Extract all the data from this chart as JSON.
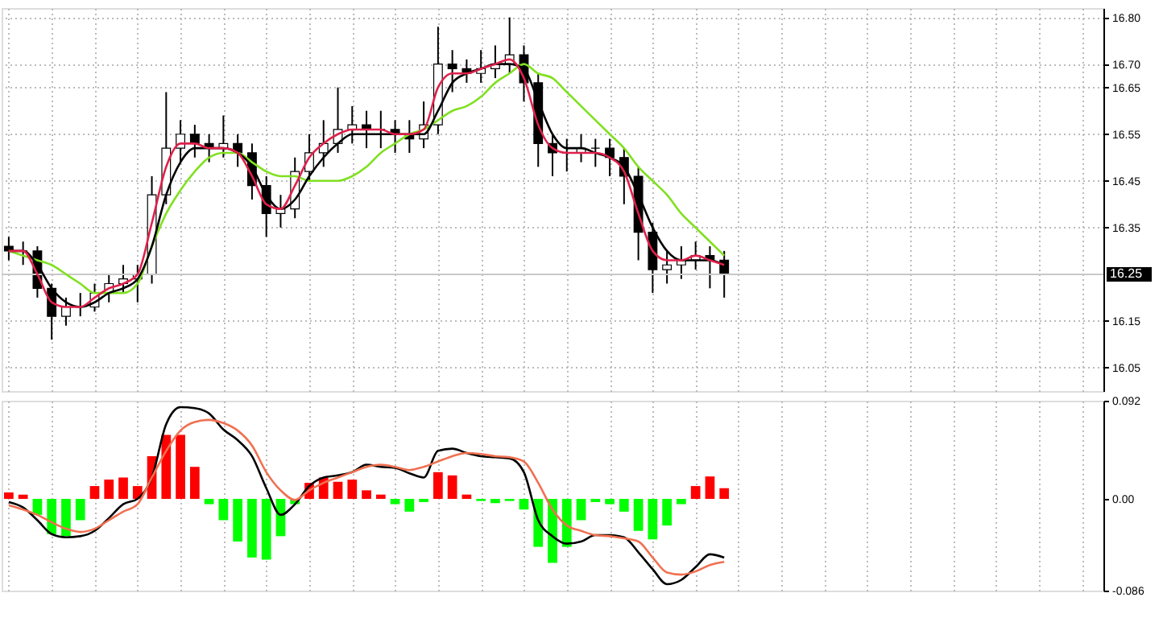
{
  "chart_data": [
    {
      "type": "candlestick",
      "categories": [
        null,
        null,
        null,
        null,
        null,
        null,
        null,
        null,
        null,
        null,
        null,
        null,
        null,
        null,
        null,
        null,
        null,
        null,
        null,
        null,
        null,
        null,
        null,
        null,
        null,
        null,
        null,
        null,
        null,
        null,
        null,
        null,
        null,
        null,
        null,
        null,
        null,
        null,
        null,
        null,
        null,
        null,
        null,
        null,
        null,
        null,
        null,
        null,
        null,
        null,
        null,
        null,
        null,
        null,
        null,
        null,
        null,
        null,
        null,
        null,
        null,
        null,
        null,
        null,
        null,
        null,
        null,
        null,
        null,
        null,
        null,
        null,
        null,
        null,
        null,
        null,
        null
      ],
      "ohlc": [
        [
          16.31,
          16.33,
          16.28,
          16.3
        ],
        [
          16.3,
          16.32,
          16.27,
          16.3
        ],
        [
          16.3,
          16.31,
          16.2,
          16.22
        ],
        [
          16.22,
          16.23,
          16.11,
          16.16
        ],
        [
          16.16,
          16.2,
          16.14,
          16.18
        ],
        [
          16.18,
          16.21,
          16.16,
          16.18
        ],
        [
          16.18,
          16.23,
          16.17,
          16.21
        ],
        [
          16.21,
          16.25,
          16.19,
          16.23
        ],
        [
          16.23,
          16.27,
          16.21,
          16.24
        ],
        [
          16.24,
          16.27,
          16.19,
          16.25
        ],
        [
          16.25,
          16.46,
          16.23,
          16.42
        ],
        [
          16.42,
          16.64,
          16.4,
          16.52
        ],
        [
          16.52,
          16.58,
          16.49,
          16.55
        ],
        [
          16.55,
          16.57,
          16.5,
          16.53
        ],
        [
          16.53,
          16.55,
          16.49,
          16.52
        ],
        [
          16.52,
          16.59,
          16.5,
          16.53
        ],
        [
          16.53,
          16.55,
          16.48,
          16.51
        ],
        [
          16.51,
          16.53,
          16.41,
          16.44
        ],
        [
          16.44,
          16.46,
          16.33,
          16.38
        ],
        [
          16.38,
          16.42,
          16.35,
          16.39
        ],
        [
          16.39,
          16.5,
          16.37,
          16.47
        ],
        [
          16.47,
          16.55,
          16.45,
          16.51
        ],
        [
          16.51,
          16.58,
          16.48,
          16.53
        ],
        [
          16.53,
          16.65,
          16.51,
          16.56
        ],
        [
          16.56,
          16.61,
          16.53,
          16.57
        ],
        [
          16.57,
          16.6,
          16.52,
          16.56
        ],
        [
          16.56,
          16.6,
          16.52,
          16.56
        ],
        [
          16.56,
          16.58,
          16.51,
          16.55
        ],
        [
          16.55,
          16.58,
          16.51,
          16.54
        ],
        [
          16.54,
          16.62,
          16.52,
          16.57
        ],
        [
          16.57,
          16.78,
          16.55,
          16.7
        ],
        [
          16.7,
          16.73,
          16.64,
          16.69
        ],
        [
          16.69,
          16.71,
          16.66,
          16.68
        ],
        [
          16.68,
          16.73,
          16.66,
          16.69
        ],
        [
          16.69,
          16.74,
          16.67,
          16.7
        ],
        [
          16.7,
          16.8,
          16.68,
          16.72
        ],
        [
          16.72,
          16.74,
          16.62,
          16.66
        ],
        [
          16.66,
          16.68,
          16.48,
          16.53
        ],
        [
          16.53,
          16.55,
          16.46,
          16.51
        ],
        [
          16.51,
          16.54,
          16.47,
          16.51
        ],
        [
          16.51,
          16.55,
          16.49,
          16.52
        ],
        [
          16.52,
          16.54,
          16.48,
          16.52
        ],
        [
          16.52,
          16.54,
          16.46,
          16.5
        ],
        [
          16.5,
          16.52,
          16.4,
          16.46
        ],
        [
          16.46,
          16.48,
          16.28,
          16.34
        ],
        [
          16.34,
          16.36,
          16.21,
          16.26
        ],
        [
          16.26,
          16.3,
          16.23,
          16.27
        ],
        [
          16.27,
          16.31,
          16.24,
          16.28
        ],
        [
          16.28,
          16.32,
          16.26,
          16.29
        ],
        [
          16.29,
          16.31,
          16.22,
          16.28
        ],
        [
          16.28,
          16.3,
          16.2,
          16.25
        ],
        null,
        null,
        null,
        null,
        null,
        null,
        null,
        null,
        null,
        null,
        null,
        null,
        null,
        null,
        null,
        null,
        null,
        null,
        null,
        null,
        null,
        null,
        null,
        null,
        null,
        null
      ],
      "color": "#000000",
      "series": [
        {
          "type": "line",
          "color": "#80e020",
          "values": [
            16.3,
            16.29,
            16.28,
            16.27,
            16.25,
            16.23,
            16.21,
            16.21,
            16.21,
            16.23,
            16.31,
            16.38,
            16.43,
            16.47,
            16.5,
            16.51,
            16.51,
            16.49,
            16.47,
            16.46,
            16.46,
            16.45,
            16.45,
            16.45,
            16.46,
            16.48,
            16.51,
            16.53,
            16.55,
            16.56,
            16.58,
            16.6,
            16.61,
            16.63,
            16.66,
            16.68,
            16.7,
            16.68,
            16.67,
            16.64,
            16.61,
            16.58,
            16.55,
            16.52,
            16.48,
            16.45,
            16.42,
            16.38,
            16.35,
            16.32,
            16.29,
            null,
            null,
            null,
            null,
            null,
            null,
            null,
            null,
            null,
            null,
            null,
            null,
            null,
            null,
            null,
            null,
            null,
            null,
            null,
            null,
            null,
            null,
            null,
            null,
            null,
            null
          ]
        },
        {
          "type": "line",
          "color": "#000000",
          "values": [
            16.3,
            16.3,
            16.27,
            16.22,
            16.19,
            16.18,
            16.19,
            16.21,
            16.22,
            16.24,
            16.31,
            16.42,
            16.49,
            16.52,
            16.52,
            16.52,
            16.51,
            16.48,
            16.42,
            16.39,
            16.41,
            16.46,
            16.5,
            16.53,
            16.55,
            16.55,
            16.55,
            16.55,
            16.55,
            16.55,
            16.6,
            16.66,
            16.68,
            16.69,
            16.7,
            16.7,
            16.69,
            16.62,
            16.55,
            16.52,
            16.52,
            16.51,
            16.5,
            16.48,
            16.42,
            16.35,
            16.3,
            16.28,
            16.28,
            16.28,
            16.27,
            null,
            null,
            null,
            null,
            null,
            null,
            null,
            null,
            null,
            null,
            null,
            null,
            null,
            null,
            null,
            null,
            null,
            null,
            null,
            null,
            null,
            null,
            null,
            null,
            null,
            null
          ]
        },
        {
          "type": "line",
          "color": "#e0204a",
          "values": [
            16.3,
            16.3,
            16.25,
            16.19,
            16.18,
            16.18,
            16.2,
            16.22,
            16.23,
            16.25,
            16.36,
            16.48,
            16.53,
            16.53,
            16.52,
            16.52,
            16.51,
            16.46,
            16.4,
            16.39,
            16.44,
            16.5,
            16.53,
            16.55,
            16.56,
            16.56,
            16.56,
            16.55,
            16.55,
            16.56,
            16.65,
            16.68,
            16.68,
            16.69,
            16.7,
            16.71,
            16.67,
            16.57,
            16.52,
            16.51,
            16.51,
            16.51,
            16.5,
            16.47,
            16.38,
            16.3,
            16.28,
            16.28,
            16.29,
            16.28,
            16.27,
            null,
            null,
            null,
            null,
            null,
            null,
            null,
            null,
            null,
            null,
            null,
            null,
            null,
            null,
            null,
            null,
            null,
            null,
            null,
            null,
            null,
            null,
            null,
            null,
            null,
            null
          ]
        }
      ],
      "ylim": [
        16.0,
        16.82
      ],
      "yticks": [
        {
          "value": 16.8,
          "label": "16.80"
        },
        {
          "value": 16.7,
          "label": "16.70"
        },
        {
          "value": 16.65,
          "label": "16.65"
        },
        {
          "value": 16.55,
          "label": "16.55"
        },
        {
          "value": 16.45,
          "label": "16.45"
        },
        {
          "value": 16.35,
          "label": "16.35"
        },
        {
          "value": 16.15,
          "label": "16.15"
        },
        {
          "value": 16.05,
          "label": "16.05"
        }
      ],
      "ref_lines": [
        {
          "axis": "y",
          "value": 16.25,
          "label": "16.25",
          "color": "#c8c8c8"
        }
      ],
      "grid": true,
      "tick_labels": "y"
    },
    {
      "type": "bar",
      "categories": [
        null,
        null,
        null,
        null,
        null,
        null,
        null,
        null,
        null,
        null,
        null,
        null,
        null,
        null,
        null,
        null,
        null,
        null,
        null,
        null,
        null,
        null,
        null,
        null,
        null,
        null,
        null,
        null,
        null,
        null,
        null,
        null,
        null,
        null,
        null,
        null,
        null,
        null,
        null,
        null,
        null,
        null,
        null,
        null,
        null,
        null,
        null,
        null,
        null,
        null,
        null,
        null,
        null,
        null,
        null,
        null,
        null,
        null,
        null,
        null,
        null,
        null,
        null,
        null,
        null,
        null,
        null,
        null,
        null,
        null,
        null,
        null,
        null,
        null,
        null,
        null,
        null
      ],
      "series": [
        {
          "type": "bar",
          "values": [
            0.006,
            0.004,
            -0.015,
            -0.033,
            -0.035,
            -0.02,
            0.012,
            0.018,
            0.02,
            0.012,
            0.04,
            0.06,
            0.06,
            0.03,
            -0.005,
            -0.02,
            -0.04,
            -0.055,
            -0.057,
            -0.035,
            -0.005,
            0.015,
            0.02,
            0.016,
            0.018,
            0.008,
            0.004,
            -0.005,
            -0.012,
            -0.003,
            0.025,
            0.022,
            0.004,
            -0.002,
            -0.004,
            -0.002,
            -0.01,
            -0.045,
            -0.06,
            -0.045,
            -0.02,
            -0.003,
            -0.005,
            -0.012,
            -0.03,
            -0.038,
            -0.025,
            -0.005,
            0.012,
            0.021,
            0.01,
            null,
            null,
            null,
            null,
            null,
            null,
            null,
            null,
            null,
            null,
            null,
            null,
            null,
            null,
            null,
            null,
            null,
            null,
            null,
            null,
            null,
            null,
            null,
            null,
            null,
            null
          ],
          "colors": [
            "#ff0000",
            "#ff0000",
            "#00ff00",
            "#00ff00",
            "#00ff00",
            "#00ff00",
            "#ff0000",
            "#ff0000",
            "#ff0000",
            "#ff0000",
            "#ff0000",
            "#ff0000",
            "#ff0000",
            "#ff0000",
            "#00ff00",
            "#00ff00",
            "#00ff00",
            "#00ff00",
            "#00ff00",
            "#00ff00",
            "#00ff00",
            "#ff0000",
            "#ff0000",
            "#ff0000",
            "#ff0000",
            "#ff0000",
            "#ff0000",
            "#00ff00",
            "#00ff00",
            "#00ff00",
            "#ff0000",
            "#ff0000",
            "#ff0000",
            "#00ff00",
            "#00ff00",
            "#00ff00",
            "#00ff00",
            "#00ff00",
            "#00ff00",
            "#00ff00",
            "#00ff00",
            "#00ff00",
            "#00ff00",
            "#00ff00",
            "#00ff00",
            "#00ff00",
            "#00ff00",
            "#00ff00",
            "#ff0000",
            "#ff0000",
            "#ff0000",
            null,
            null,
            null,
            null,
            null,
            null,
            null,
            null,
            null,
            null,
            null,
            null,
            null,
            null,
            null,
            null,
            null,
            null,
            null,
            null,
            null,
            null,
            null,
            null,
            null,
            null
          ]
        },
        {
          "type": "line",
          "color": "#000000",
          "values": [
            -0.003,
            -0.008,
            -0.02,
            -0.033,
            -0.036,
            -0.035,
            -0.03,
            -0.018,
            -0.005,
            0.0,
            0.02,
            0.07,
            0.086,
            0.085,
            0.08,
            0.065,
            0.055,
            0.04,
            0.01,
            -0.015,
            -0.005,
            0.012,
            0.02,
            0.022,
            0.025,
            0.032,
            0.03,
            0.029,
            0.024,
            0.02,
            0.045,
            0.047,
            0.043,
            0.04,
            0.039,
            0.038,
            0.025,
            -0.02,
            -0.035,
            -0.042,
            -0.04,
            -0.034,
            -0.034,
            -0.036,
            -0.05,
            -0.066,
            -0.08,
            -0.076,
            -0.064,
            -0.052,
            -0.055,
            null,
            null,
            null,
            null,
            null,
            null,
            null,
            null,
            null,
            null,
            null,
            null,
            null,
            null,
            null,
            null,
            null,
            null,
            null,
            null,
            null,
            null,
            null,
            null,
            null,
            null
          ]
        },
        {
          "type": "line",
          "color": "#f07050",
          "values": [
            -0.006,
            -0.01,
            -0.015,
            -0.022,
            -0.028,
            -0.031,
            -0.028,
            -0.02,
            -0.012,
            -0.005,
            0.02,
            0.045,
            0.064,
            0.072,
            0.074,
            0.071,
            0.064,
            0.05,
            0.025,
            0.008,
            -0.001,
            0.008,
            0.015,
            0.02,
            0.025,
            0.03,
            0.032,
            0.03,
            0.027,
            0.03,
            0.035,
            0.04,
            0.043,
            0.042,
            0.04,
            0.039,
            0.035,
            0.015,
            -0.01,
            -0.025,
            -0.03,
            -0.034,
            -0.035,
            -0.037,
            -0.04,
            -0.055,
            -0.069,
            -0.071,
            -0.068,
            -0.062,
            -0.059,
            null,
            null,
            null,
            null,
            null,
            null,
            null,
            null,
            null,
            null,
            null,
            null,
            null,
            null,
            null,
            null,
            null,
            null,
            null,
            null,
            null,
            null,
            null,
            null,
            null,
            null
          ]
        }
      ],
      "ylim": [
        -0.086,
        0.092
      ],
      "yticks": [
        {
          "value": 0.092,
          "label": "0.092"
        },
        {
          "value": 0,
          "label": "0.00"
        },
        {
          "value": -0.086,
          "label": "-0.086"
        }
      ],
      "grid": "x",
      "tick_labels": "y"
    }
  ]
}
